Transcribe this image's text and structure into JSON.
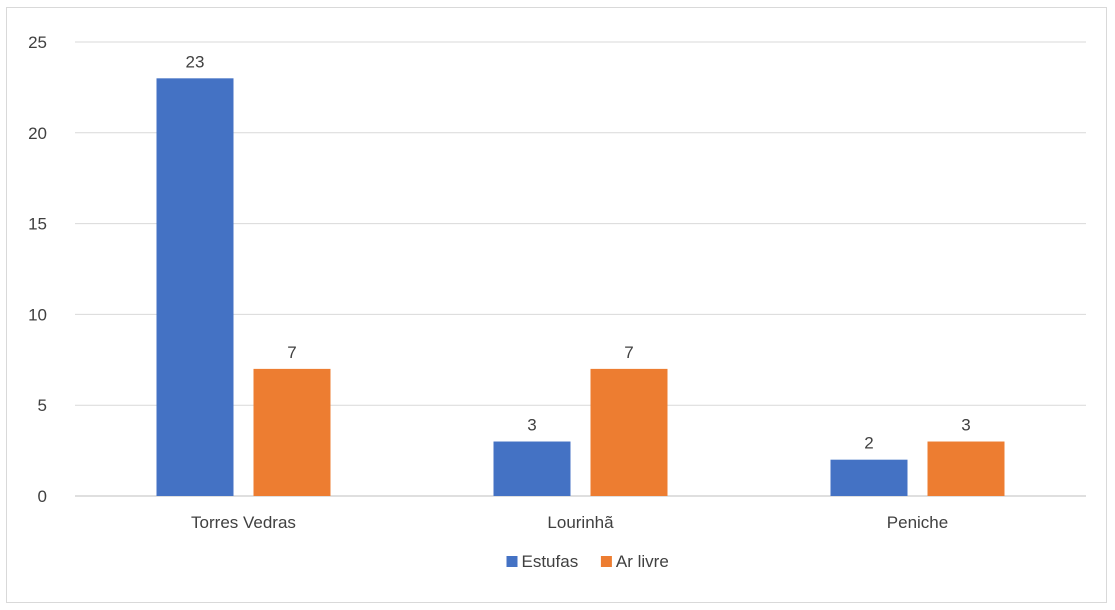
{
  "chart_data": {
    "type": "bar",
    "categories": [
      "Torres Vedras",
      "Lourinhã",
      "Peniche"
    ],
    "series": [
      {
        "name": "Estufas",
        "values": [
          23,
          3,
          2
        ],
        "color": "#4472c4"
      },
      {
        "name": "Ar livre",
        "values": [
          7,
          7,
          3
        ],
        "color": "#ed7d31"
      }
    ],
    "ylim": [
      0,
      25
    ],
    "yticks": [
      0,
      5,
      10,
      15,
      20,
      25
    ],
    "grid": true,
    "data_labels": true,
    "legend_position": "bottom",
    "title": "",
    "xlabel": "",
    "ylabel": ""
  }
}
